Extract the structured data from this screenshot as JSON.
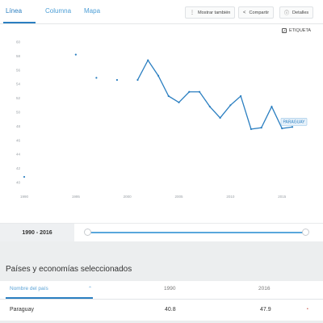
{
  "tabs": [
    {
      "label": "Línea"
    },
    {
      "label": "Columna"
    },
    {
      "label": "Mapa"
    }
  ],
  "toolbar": {
    "show_also": "Mostrar también",
    "share": "Compartir",
    "details": "Detalles"
  },
  "label_toggle": "ETIQUETA",
  "chart_data": {
    "type": "line",
    "x_ticks": [
      "1990",
      "1995",
      "2000",
      "2005",
      "2010",
      "2015"
    ],
    "y_ticks": [
      "40",
      "42",
      "44",
      "46",
      "48",
      "50",
      "52",
      "54",
      "56",
      "58",
      "60"
    ],
    "ylim": [
      40,
      60
    ],
    "xlim": [
      1990,
      2016
    ],
    "color": "#2b7fc1",
    "series": [
      {
        "name": "PARAGUAY",
        "points": [
          [
            1990,
            40.8
          ],
          [
            1995,
            58.2
          ],
          [
            1997,
            54.9
          ],
          [
            1999,
            54.6
          ],
          [
            2001,
            54.6
          ],
          [
            2002,
            57.4
          ],
          [
            2003,
            55.2
          ],
          [
            2004,
            52.3
          ],
          [
            2005,
            51.4
          ],
          [
            2006,
            52.9
          ],
          [
            2007,
            52.9
          ],
          [
            2008,
            50.8
          ],
          [
            2009,
            49.2
          ],
          [
            2010,
            51.0
          ],
          [
            2011,
            52.3
          ],
          [
            2012,
            47.6
          ],
          [
            2013,
            47.8
          ],
          [
            2014,
            50.8
          ],
          [
            2015,
            47.7
          ],
          [
            2016,
            47.9
          ]
        ],
        "gaps_after": [
          1990,
          1995,
          1997,
          1999
        ]
      }
    ]
  },
  "range_label": "1990 - 2016",
  "section_title": "Países y economías seleccionados",
  "table": {
    "headers": {
      "country": "Nombre del país",
      "start": "1990",
      "end": "2016"
    },
    "rows": [
      {
        "country": "Paraguay",
        "start": "40.8",
        "end": "47.9"
      }
    ]
  }
}
